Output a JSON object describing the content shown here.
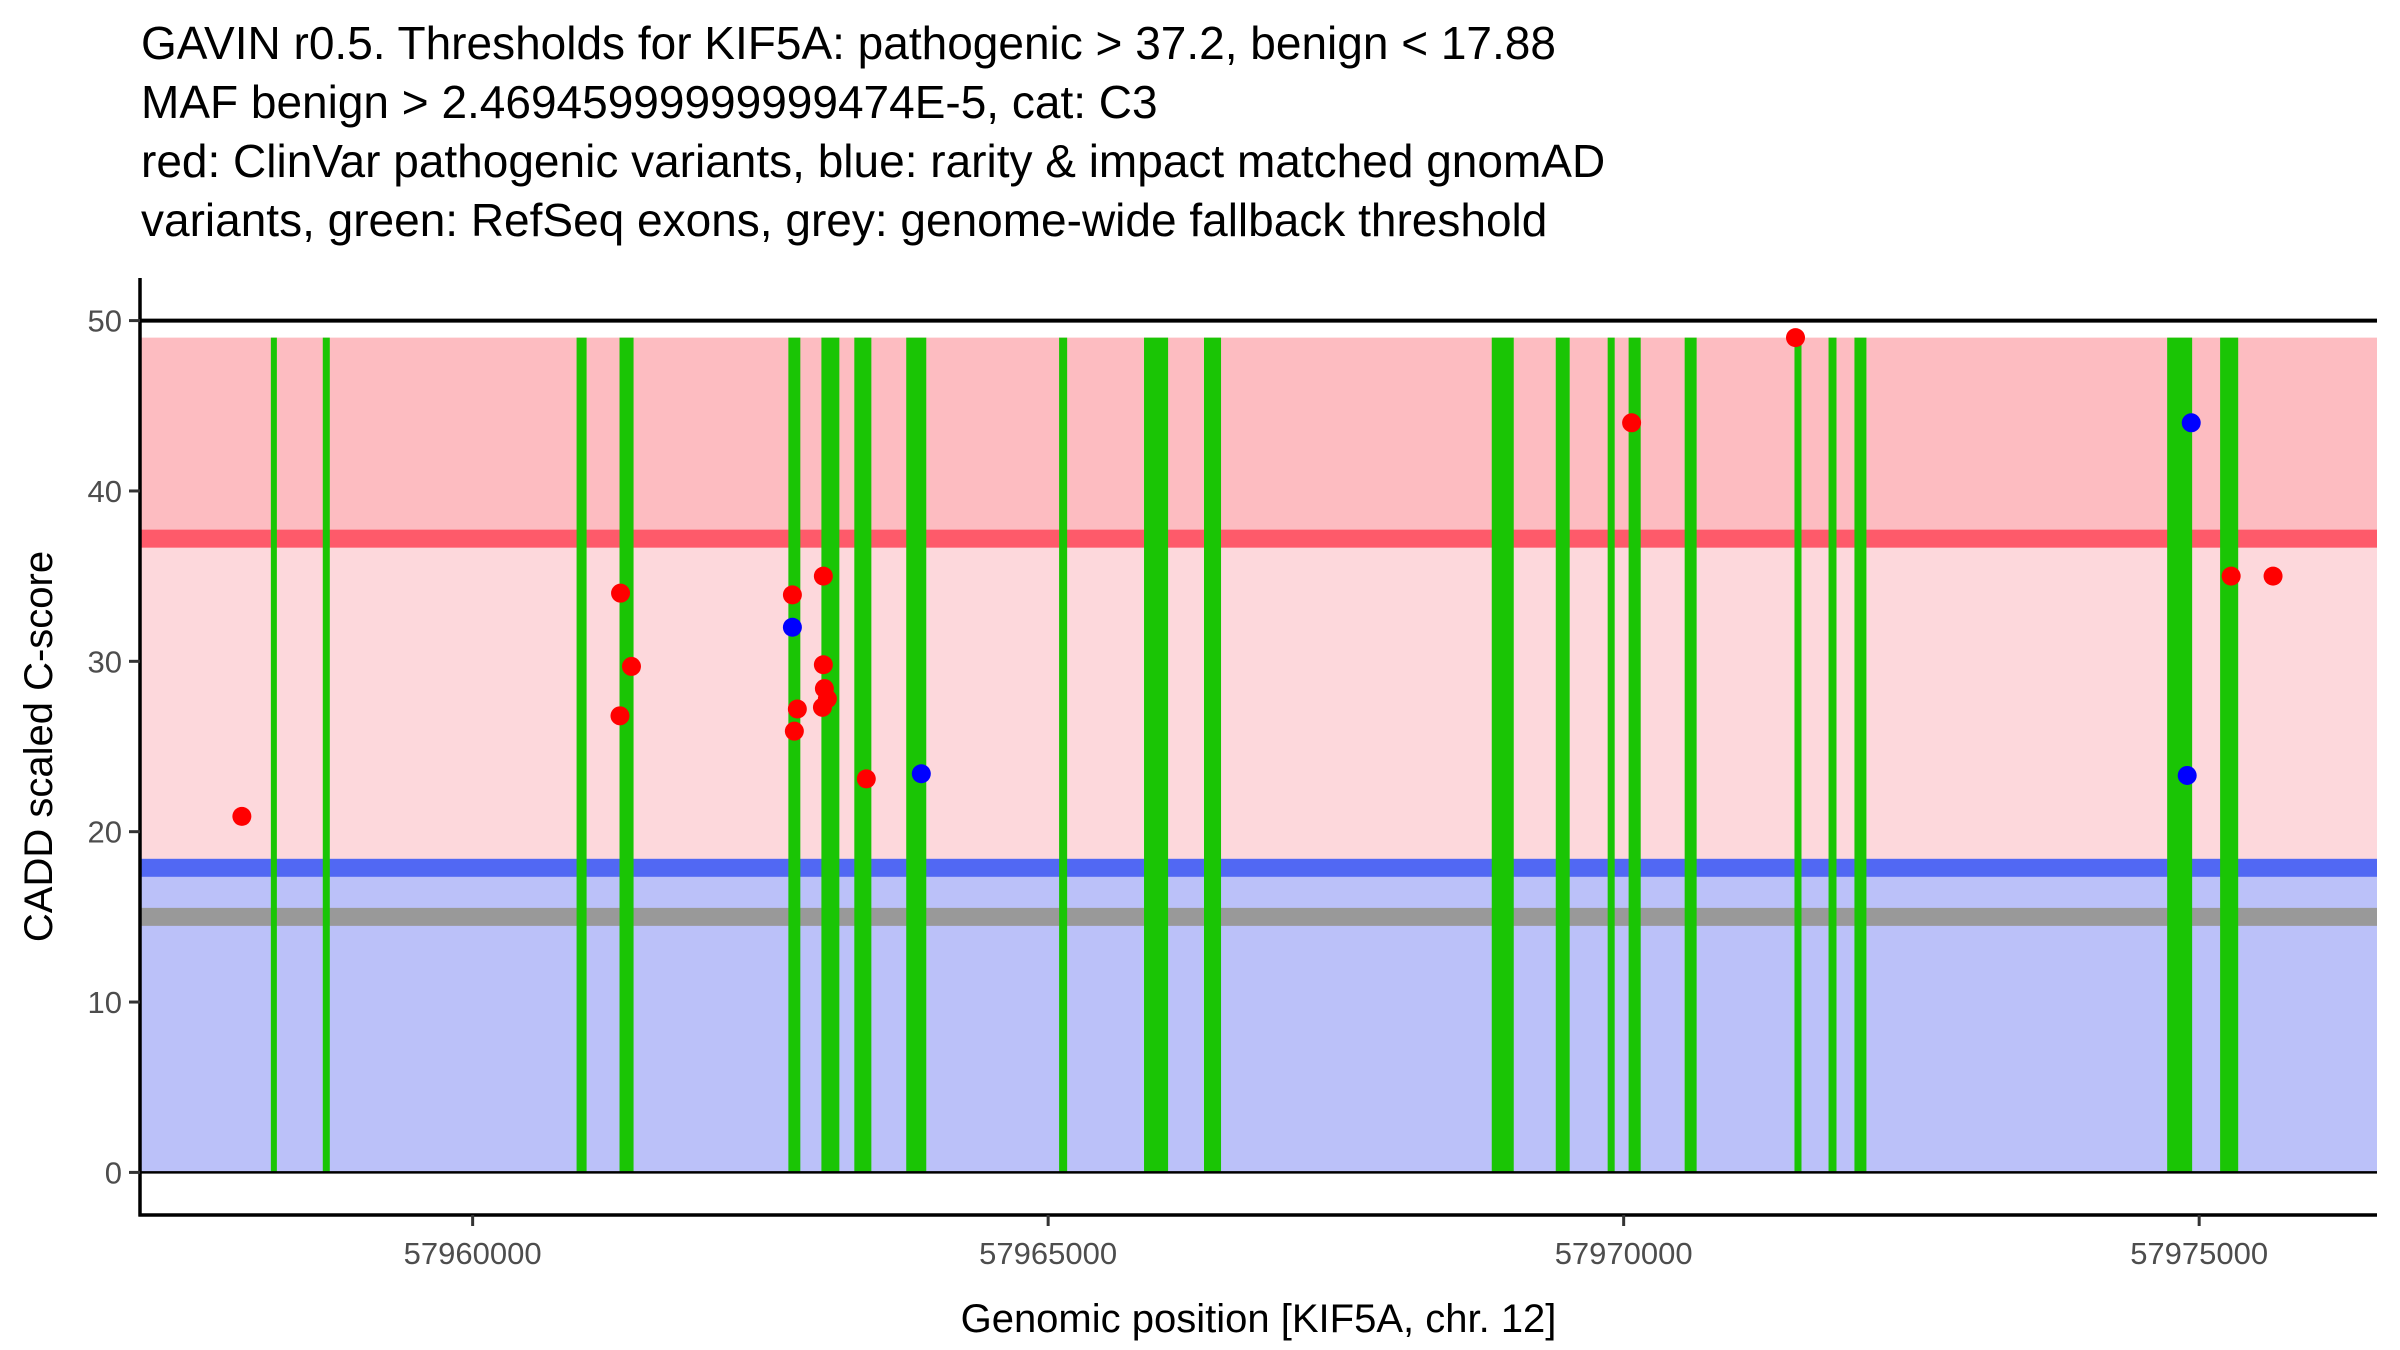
{
  "chart_data": {
    "type": "scatter",
    "title_lines": [
      "GAVIN r0.5. Thresholds for KIF5A: pathogenic > 37.2, benign < 17.88",
      "MAF benign > 2.46945999999999474E-5, cat: C3",
      "red: ClinVar pathogenic variants, blue: rarity & impact matched gnomAD",
      "variants, green: RefSeq exons, grey: genome-wide fallback threshold"
    ],
    "xlabel": "Genomic position [KIF5A, chr. 12]",
    "ylabel": "CADD scaled C-score",
    "xlim": [
      57957110,
      57976545
    ],
    "ylim": [
      -2.5,
      52.5
    ],
    "x_ticks": [
      57960000,
      57965000,
      57970000,
      57975000
    ],
    "x_tick_labels": [
      "57960000",
      "57965000",
      "57970000",
      "57975000"
    ],
    "y_ticks": [
      0,
      10,
      20,
      30,
      40,
      50
    ],
    "y_tick_labels": [
      "0",
      "10",
      "20",
      "30",
      "40",
      "50"
    ],
    "grid": false,
    "legend": "none",
    "colors": {
      "pathogenic_zone": "#fdbcc1",
      "vus_zone": "#fdd8dc",
      "benign_zone": "#bbc1f9",
      "pathogenic_threshold": "#fe5a6a",
      "benign_threshold": "#5168f3",
      "fallback_threshold": "#999999",
      "exon": "#1ac505",
      "pathogenic_point": "#ff0000",
      "gnomad_point": "#0000ff",
      "reference_line": "#000000"
    },
    "zones": [
      {
        "name": "pathogenic-zone",
        "color_key": "pathogenic_zone",
        "y_from": 37.2,
        "y_to": 49.0
      },
      {
        "name": "vus-zone",
        "color_key": "vus_zone",
        "y_from": 17.88,
        "y_to": 37.2
      },
      {
        "name": "benign-zone",
        "color_key": "benign_zone",
        "y_from": 0,
        "y_to": 17.88
      }
    ],
    "thresholds": [
      {
        "name": "pathogenic-threshold",
        "value": 37.2,
        "color_key": "pathogenic_threshold"
      },
      {
        "name": "benign-threshold",
        "value": 17.88,
        "color_key": "benign_threshold"
      },
      {
        "name": "fallback-threshold",
        "value": 15.0,
        "color_key": "fallback_threshold"
      }
    ],
    "reference_lines": [
      0,
      50
    ],
    "exon_y_range": [
      0,
      49.0
    ],
    "exons": [
      [
        57958247,
        57958290
      ],
      [
        57958698,
        57958759
      ],
      [
        57960903,
        57960990
      ],
      [
        57961276,
        57961398
      ],
      [
        57962743,
        57962847
      ],
      [
        57963030,
        57963186
      ],
      [
        57963316,
        57963464
      ],
      [
        57963767,
        57963941
      ],
      [
        57965095,
        57965165
      ],
      [
        57965833,
        57966042
      ],
      [
        57966354,
        57966502
      ],
      [
        57968854,
        57969045
      ],
      [
        57969410,
        57969531
      ],
      [
        57969861,
        57969922
      ],
      [
        57970043,
        57970148
      ],
      [
        57970530,
        57970634
      ],
      [
        57971484,
        57971545
      ],
      [
        57971780,
        57971849
      ],
      [
        57972005,
        57972109
      ],
      [
        57974722,
        57974939
      ],
      [
        57975182,
        57975339
      ]
    ],
    "series": [
      {
        "name": "ClinVar pathogenic variants",
        "color_key": "pathogenic_point",
        "points": [
          [
            57957995,
            20.9
          ],
          [
            57961285,
            34.0
          ],
          [
            57961380,
            29.7
          ],
          [
            57961280,
            26.8
          ],
          [
            57962778,
            33.9
          ],
          [
            57963047,
            35.0
          ],
          [
            57963047,
            29.8
          ],
          [
            57963056,
            28.4
          ],
          [
            57963082,
            27.8
          ],
          [
            57963039,
            27.3
          ],
          [
            57962821,
            27.2
          ],
          [
            57962795,
            25.9
          ],
          [
            57963420,
            23.1
          ],
          [
            57970069,
            44.0
          ],
          [
            57971493,
            49.0
          ],
          [
            57975278,
            35.0
          ],
          [
            57975642,
            35.0
          ]
        ]
      },
      {
        "name": "rarity & impact matched gnomAD variants",
        "color_key": "gnomad_point",
        "points": [
          [
            57962778,
            32.0
          ],
          [
            57963898,
            23.4
          ],
          [
            57974931,
            44.0
          ],
          [
            57974896,
            23.3
          ]
        ]
      }
    ]
  }
}
